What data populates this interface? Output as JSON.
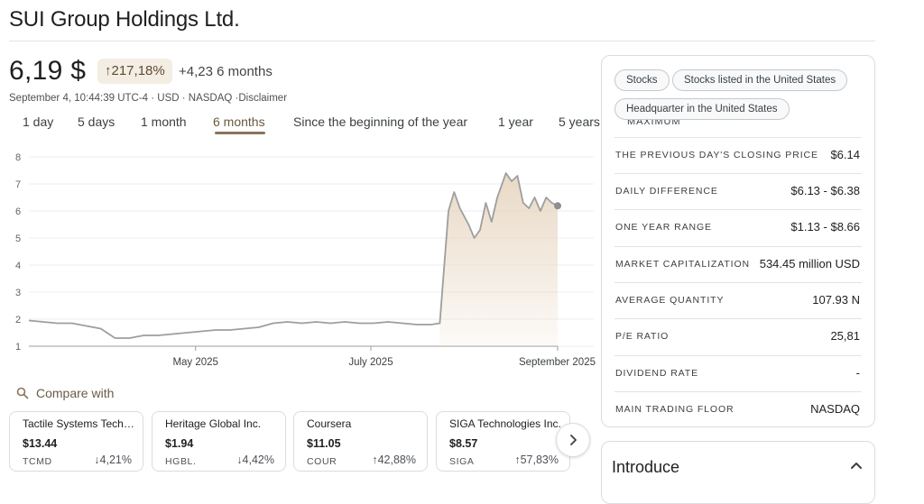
{
  "header": {
    "title": "SUI Group Holdings Ltd."
  },
  "quote": {
    "price": "6,19 $",
    "change_pct": "↑217,18%",
    "change_abs": "+4,23 6 months",
    "meta": "September 4, 10:44:39 UTC-4 · USD · NASDAQ ·Disclaimer"
  },
  "tabs": [
    "1 day",
    "5 days",
    "1 month",
    "6 months",
    "Since the beginning of the year",
    "1 year",
    "5 years"
  ],
  "active_tab": "6 months",
  "chart_data": {
    "type": "area",
    "x_ticks": [
      "May 2025",
      "July 2025",
      "September 2025"
    ],
    "y_ticks": [
      "1",
      "2",
      "3",
      "4",
      "5",
      "6",
      "7",
      "8"
    ],
    "ylim": [
      1,
      8
    ],
    "grid": true,
    "line_color": "#9e9e9e",
    "fill_color": "#e8d7c3",
    "x": [
      "2025-03-04",
      "2025-03-09",
      "2025-03-14",
      "2025-03-19",
      "2025-03-24",
      "2025-03-29",
      "2025-04-03",
      "2025-04-08",
      "2025-04-13",
      "2025-04-18",
      "2025-04-23",
      "2025-04-28",
      "2025-05-03",
      "2025-05-08",
      "2025-05-13",
      "2025-05-18",
      "2025-05-23",
      "2025-05-28",
      "2025-06-02",
      "2025-06-07",
      "2025-06-12",
      "2025-06-17",
      "2025-06-22",
      "2025-06-27",
      "2025-07-02",
      "2025-07-07",
      "2025-07-12",
      "2025-07-17",
      "2025-07-22",
      "2025-07-25",
      "2025-07-28",
      "2025-07-30",
      "2025-08-01",
      "2025-08-04",
      "2025-08-06",
      "2025-08-08",
      "2025-08-10",
      "2025-08-12",
      "2025-08-14",
      "2025-08-17",
      "2025-08-19",
      "2025-08-21",
      "2025-08-23",
      "2025-08-25",
      "2025-08-27",
      "2025-08-29",
      "2025-08-31",
      "2025-09-02",
      "2025-09-04"
    ],
    "y": [
      1.95,
      1.9,
      1.85,
      1.85,
      1.75,
      1.65,
      1.3,
      1.3,
      1.4,
      1.4,
      1.45,
      1.5,
      1.55,
      1.6,
      1.6,
      1.65,
      1.7,
      1.85,
      1.9,
      1.85,
      1.9,
      1.85,
      1.9,
      1.85,
      1.85,
      1.9,
      1.85,
      1.8,
      1.8,
      1.85,
      6.0,
      6.7,
      6.1,
      5.5,
      5.0,
      5.3,
      6.3,
      5.6,
      6.5,
      7.4,
      7.1,
      7.3,
      6.3,
      6.1,
      6.5,
      6.0,
      6.5,
      6.3,
      6.19
    ]
  },
  "compare": {
    "label": "Compare with",
    "cards": [
      {
        "name": "Tactile Systems Techn...",
        "price": "$13.44",
        "ticker": "TCMD",
        "change": "↓4,21%"
      },
      {
        "name": "Heritage Global Inc.",
        "price": "$1.94",
        "ticker": "HGBL.",
        "change": "↓4,42%"
      },
      {
        "name": "Coursera",
        "price": "$11.05",
        "ticker": "COUR",
        "change": "↑42,88%"
      },
      {
        "name": "SIGA Technologies Inc.",
        "price": "$8.57",
        "ticker": "SIGA",
        "change": "↑57,83%"
      }
    ]
  },
  "panel": {
    "chips": [
      "Stocks",
      "Stocks listed in the United States",
      "Headquarter in the United States"
    ],
    "partial_label": "MAXIMUM",
    "rows": [
      {
        "label": "THE PREVIOUS DAY'S CLOSING PRICE",
        "value": "$6.14"
      },
      {
        "label": "DAILY DIFFERENCE",
        "value": "$6.13 - $6.38"
      },
      {
        "label": "ONE YEAR RANGE",
        "value": "$1.13 - $8.66"
      },
      {
        "label": "MARKET CAPITALIZATION",
        "value": "534.45 million USD"
      },
      {
        "label": "AVERAGE QUANTITY",
        "value": "107.93 N"
      },
      {
        "label": "P/E RATIO",
        "value": "25,81"
      },
      {
        "label": "DIVIDEND RATE",
        "value": "-"
      },
      {
        "label": "MAIN TRADING FLOOR",
        "value": "NASDAQ"
      }
    ]
  },
  "intro": {
    "title": "Introduce"
  }
}
